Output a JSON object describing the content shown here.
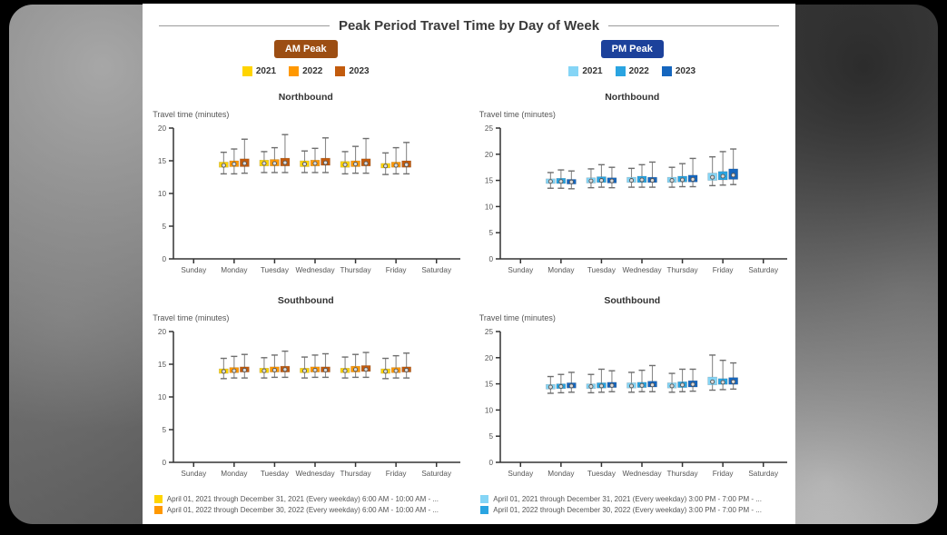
{
  "page": {
    "title": "Peak Period Travel Time by Day of Week"
  },
  "groups": {
    "am": {
      "badge": "AM Peak",
      "badge_color": "#9C4E13",
      "years": [
        {
          "label": "2021",
          "color": "#FFD400"
        },
        {
          "label": "2022",
          "color": "#FF9800"
        },
        {
          "label": "2023",
          "color": "#C25B0D"
        }
      ]
    },
    "pm": {
      "badge": "PM Peak",
      "badge_color": "#1C419B",
      "years": [
        {
          "label": "2021",
          "color": "#85D5F6"
        },
        {
          "label": "2022",
          "color": "#2AA4E1"
        },
        {
          "label": "2023",
          "color": "#1566BE"
        }
      ]
    }
  },
  "footer": {
    "am": [
      {
        "label": "April 01, 2021 through December 31, 2021 (Every weekday) 6:00 AM - 10:00 AM - ...",
        "color": "#FFD400"
      },
      {
        "label": "April 01, 2022 through December 30, 2022 (Every weekday) 6:00 AM - 10:00 AM - ...",
        "color": "#FF9800"
      }
    ],
    "pm": [
      {
        "label": "April 01, 2021 through December 31, 2021 (Every weekday) 3:00 PM - 7:00 PM - ...",
        "color": "#85D5F6"
      },
      {
        "label": "April 01, 2022 through December 30, 2022 (Every weekday) 3:00 PM - 7:00 PM - ...",
        "color": "#2AA4E1"
      }
    ]
  },
  "chart_data": [
    {
      "type": "boxplot",
      "peak": "AM Peak",
      "title": "Northbound",
      "ylabel": "Travel time (minutes)",
      "ylim": [
        0,
        20
      ],
      "yticks": [
        0,
        5,
        10,
        15,
        20
      ],
      "categories": [
        "Sunday",
        "Monday",
        "Tuesday",
        "Wednesday",
        "Thursday",
        "Friday",
        "Saturday"
      ],
      "box_days": [
        "Monday",
        "Tuesday",
        "Wednesday",
        "Thursday",
        "Friday"
      ],
      "box_format": [
        "low",
        "q1",
        "median",
        "q3",
        "high"
      ],
      "series": [
        {
          "name": "2021",
          "color": "#FFD400",
          "values": [
            [
              13.0,
              14.0,
              14.3,
              14.8,
              16.3
            ],
            [
              13.2,
              14.2,
              14.6,
              15.1,
              16.4
            ],
            [
              13.2,
              14.1,
              14.5,
              15.0,
              16.5
            ],
            [
              13.0,
              14.0,
              14.4,
              14.9,
              16.4
            ],
            [
              12.9,
              13.9,
              14.2,
              14.6,
              16.2
            ]
          ]
        },
        {
          "name": "2022",
          "color": "#FF9800",
          "values": [
            [
              13.0,
              14.1,
              14.5,
              15.0,
              16.8
            ],
            [
              13.2,
              14.2,
              14.6,
              15.2,
              17.0
            ],
            [
              13.2,
              14.2,
              14.6,
              15.1,
              16.9
            ],
            [
              13.1,
              14.1,
              14.5,
              15.0,
              17.2
            ],
            [
              13.0,
              14.0,
              14.3,
              14.8,
              17.0
            ]
          ]
        },
        {
          "name": "2023",
          "color": "#C25B0D",
          "values": [
            [
              13.1,
              14.1,
              14.6,
              15.3,
              18.3
            ],
            [
              13.2,
              14.2,
              14.7,
              15.4,
              19.0
            ],
            [
              13.2,
              14.3,
              14.7,
              15.4,
              18.5
            ],
            [
              13.1,
              14.2,
              14.6,
              15.3,
              18.4
            ],
            [
              13.0,
              14.0,
              14.4,
              15.0,
              17.8
            ]
          ]
        }
      ]
    },
    {
      "type": "boxplot",
      "peak": "PM Peak",
      "title": "Northbound",
      "ylabel": "Travel time (minutes)",
      "ylim": [
        0,
        25
      ],
      "yticks": [
        0,
        5,
        10,
        15,
        20,
        25
      ],
      "categories": [
        "Sunday",
        "Monday",
        "Tuesday",
        "Wednesday",
        "Thursday",
        "Friday",
        "Saturday"
      ],
      "box_days": [
        "Monday",
        "Tuesday",
        "Wednesday",
        "Thursday",
        "Friday"
      ],
      "box_format": [
        "low",
        "q1",
        "median",
        "q3",
        "high"
      ],
      "series": [
        {
          "name": "2021",
          "color": "#85D5F6",
          "values": [
            [
              13.5,
              14.4,
              14.8,
              15.3,
              16.5
            ],
            [
              13.6,
              14.5,
              14.9,
              15.5,
              17.2
            ],
            [
              13.7,
              14.6,
              15.0,
              15.6,
              17.3
            ],
            [
              13.7,
              14.6,
              15.0,
              15.6,
              17.5
            ],
            [
              14.0,
              15.0,
              15.6,
              16.4,
              19.5
            ]
          ]
        },
        {
          "name": "2022",
          "color": "#2AA4E1",
          "values": [
            [
              13.5,
              14.4,
              14.8,
              15.4,
              17.0
            ],
            [
              13.7,
              14.6,
              15.0,
              15.7,
              18.0
            ],
            [
              13.7,
              14.6,
              15.1,
              15.8,
              18.0
            ],
            [
              13.8,
              14.7,
              15.1,
              15.8,
              18.2
            ],
            [
              14.1,
              15.1,
              15.8,
              16.7,
              20.5
            ]
          ]
        },
        {
          "name": "2023",
          "color": "#1566BE",
          "values": [
            [
              13.4,
              14.3,
              14.7,
              15.2,
              16.8
            ],
            [
              13.6,
              14.5,
              14.9,
              15.5,
              17.5
            ],
            [
              13.7,
              14.6,
              15.0,
              15.6,
              18.5
            ],
            [
              13.8,
              14.7,
              15.2,
              16.0,
              19.2
            ],
            [
              14.2,
              15.2,
              16.0,
              17.2,
              21.0
            ]
          ]
        }
      ]
    },
    {
      "type": "boxplot",
      "peak": "AM Peak",
      "title": "Southbound",
      "ylabel": "Travel time (minutes)",
      "ylim": [
        0,
        20
      ],
      "yticks": [
        0,
        5,
        10,
        15,
        20
      ],
      "categories": [
        "Sunday",
        "Monday",
        "Tuesday",
        "Wednesday",
        "Thursday",
        "Friday",
        "Saturday"
      ],
      "box_days": [
        "Monday",
        "Tuesday",
        "Wednesday",
        "Thursday",
        "Friday"
      ],
      "box_format": [
        "low",
        "q1",
        "median",
        "q3",
        "high"
      ],
      "series": [
        {
          "name": "2021",
          "color": "#FFD400",
          "values": [
            [
              12.8,
              13.6,
              13.9,
              14.3,
              15.9
            ],
            [
              12.9,
              13.7,
              14.0,
              14.4,
              16.0
            ],
            [
              12.9,
              13.7,
              14.0,
              14.4,
              16.1
            ],
            [
              12.9,
              13.7,
              14.0,
              14.4,
              16.1
            ],
            [
              12.8,
              13.6,
              13.9,
              14.3,
              15.9
            ]
          ]
        },
        {
          "name": "2022",
          "color": "#FF9800",
          "values": [
            [
              12.9,
              13.7,
              14.0,
              14.5,
              16.2
            ],
            [
              13.0,
              13.8,
              14.1,
              14.6,
              16.4
            ],
            [
              13.0,
              13.8,
              14.1,
              14.6,
              16.4
            ],
            [
              13.0,
              13.8,
              14.2,
              14.7,
              16.5
            ],
            [
              12.9,
              13.7,
              14.0,
              14.5,
              16.3
            ]
          ]
        },
        {
          "name": "2023",
          "color": "#C25B0D",
          "values": [
            [
              12.9,
              13.8,
              14.1,
              14.6,
              16.5
            ],
            [
              13.0,
              13.8,
              14.2,
              14.7,
              17.0
            ],
            [
              13.0,
              13.8,
              14.1,
              14.6,
              16.6
            ],
            [
              13.0,
              13.9,
              14.2,
              14.8,
              16.8
            ],
            [
              12.9,
              13.8,
              14.1,
              14.6,
              16.7
            ]
          ]
        }
      ]
    },
    {
      "type": "boxplot",
      "peak": "PM Peak",
      "title": "Southbound",
      "ylabel": "Travel time (minutes)",
      "ylim": [
        0,
        25
      ],
      "yticks": [
        0,
        5,
        10,
        15,
        20,
        25
      ],
      "categories": [
        "Sunday",
        "Monday",
        "Tuesday",
        "Wednesday",
        "Thursday",
        "Friday",
        "Saturday"
      ],
      "box_days": [
        "Monday",
        "Tuesday",
        "Wednesday",
        "Thursday",
        "Friday"
      ],
      "box_format": [
        "low",
        "q1",
        "median",
        "q3",
        "high"
      ],
      "series": [
        {
          "name": "2021",
          "color": "#85D5F6",
          "values": [
            [
              13.2,
              14.0,
              14.4,
              14.9,
              16.4
            ],
            [
              13.3,
              14.1,
              14.5,
              15.0,
              16.8
            ],
            [
              13.4,
              14.2,
              14.6,
              15.2,
              17.2
            ],
            [
              13.4,
              14.2,
              14.6,
              15.2,
              17.0
            ],
            [
              13.8,
              14.8,
              15.4,
              16.3,
              20.5
            ]
          ]
        },
        {
          "name": "2022",
          "color": "#2AA4E1",
          "values": [
            [
              13.3,
              14.1,
              14.5,
              15.0,
              16.8
            ],
            [
              13.4,
              14.2,
              14.6,
              15.2,
              17.8
            ],
            [
              13.5,
              14.3,
              14.7,
              15.3,
              17.6
            ],
            [
              13.5,
              14.3,
              14.8,
              15.4,
              17.8
            ],
            [
              13.9,
              14.9,
              15.3,
              16.0,
              19.5
            ]
          ]
        },
        {
          "name": "2023",
          "color": "#1566BE",
          "values": [
            [
              13.4,
              14.2,
              14.6,
              15.2,
              17.2
            ],
            [
              13.5,
              14.3,
              14.7,
              15.3,
              17.5
            ],
            [
              13.5,
              14.4,
              14.8,
              15.5,
              18.5
            ],
            [
              13.6,
              14.4,
              14.9,
              15.6,
              17.8
            ],
            [
              14.0,
              14.9,
              15.4,
              16.2,
              19.0
            ]
          ]
        }
      ]
    }
  ]
}
